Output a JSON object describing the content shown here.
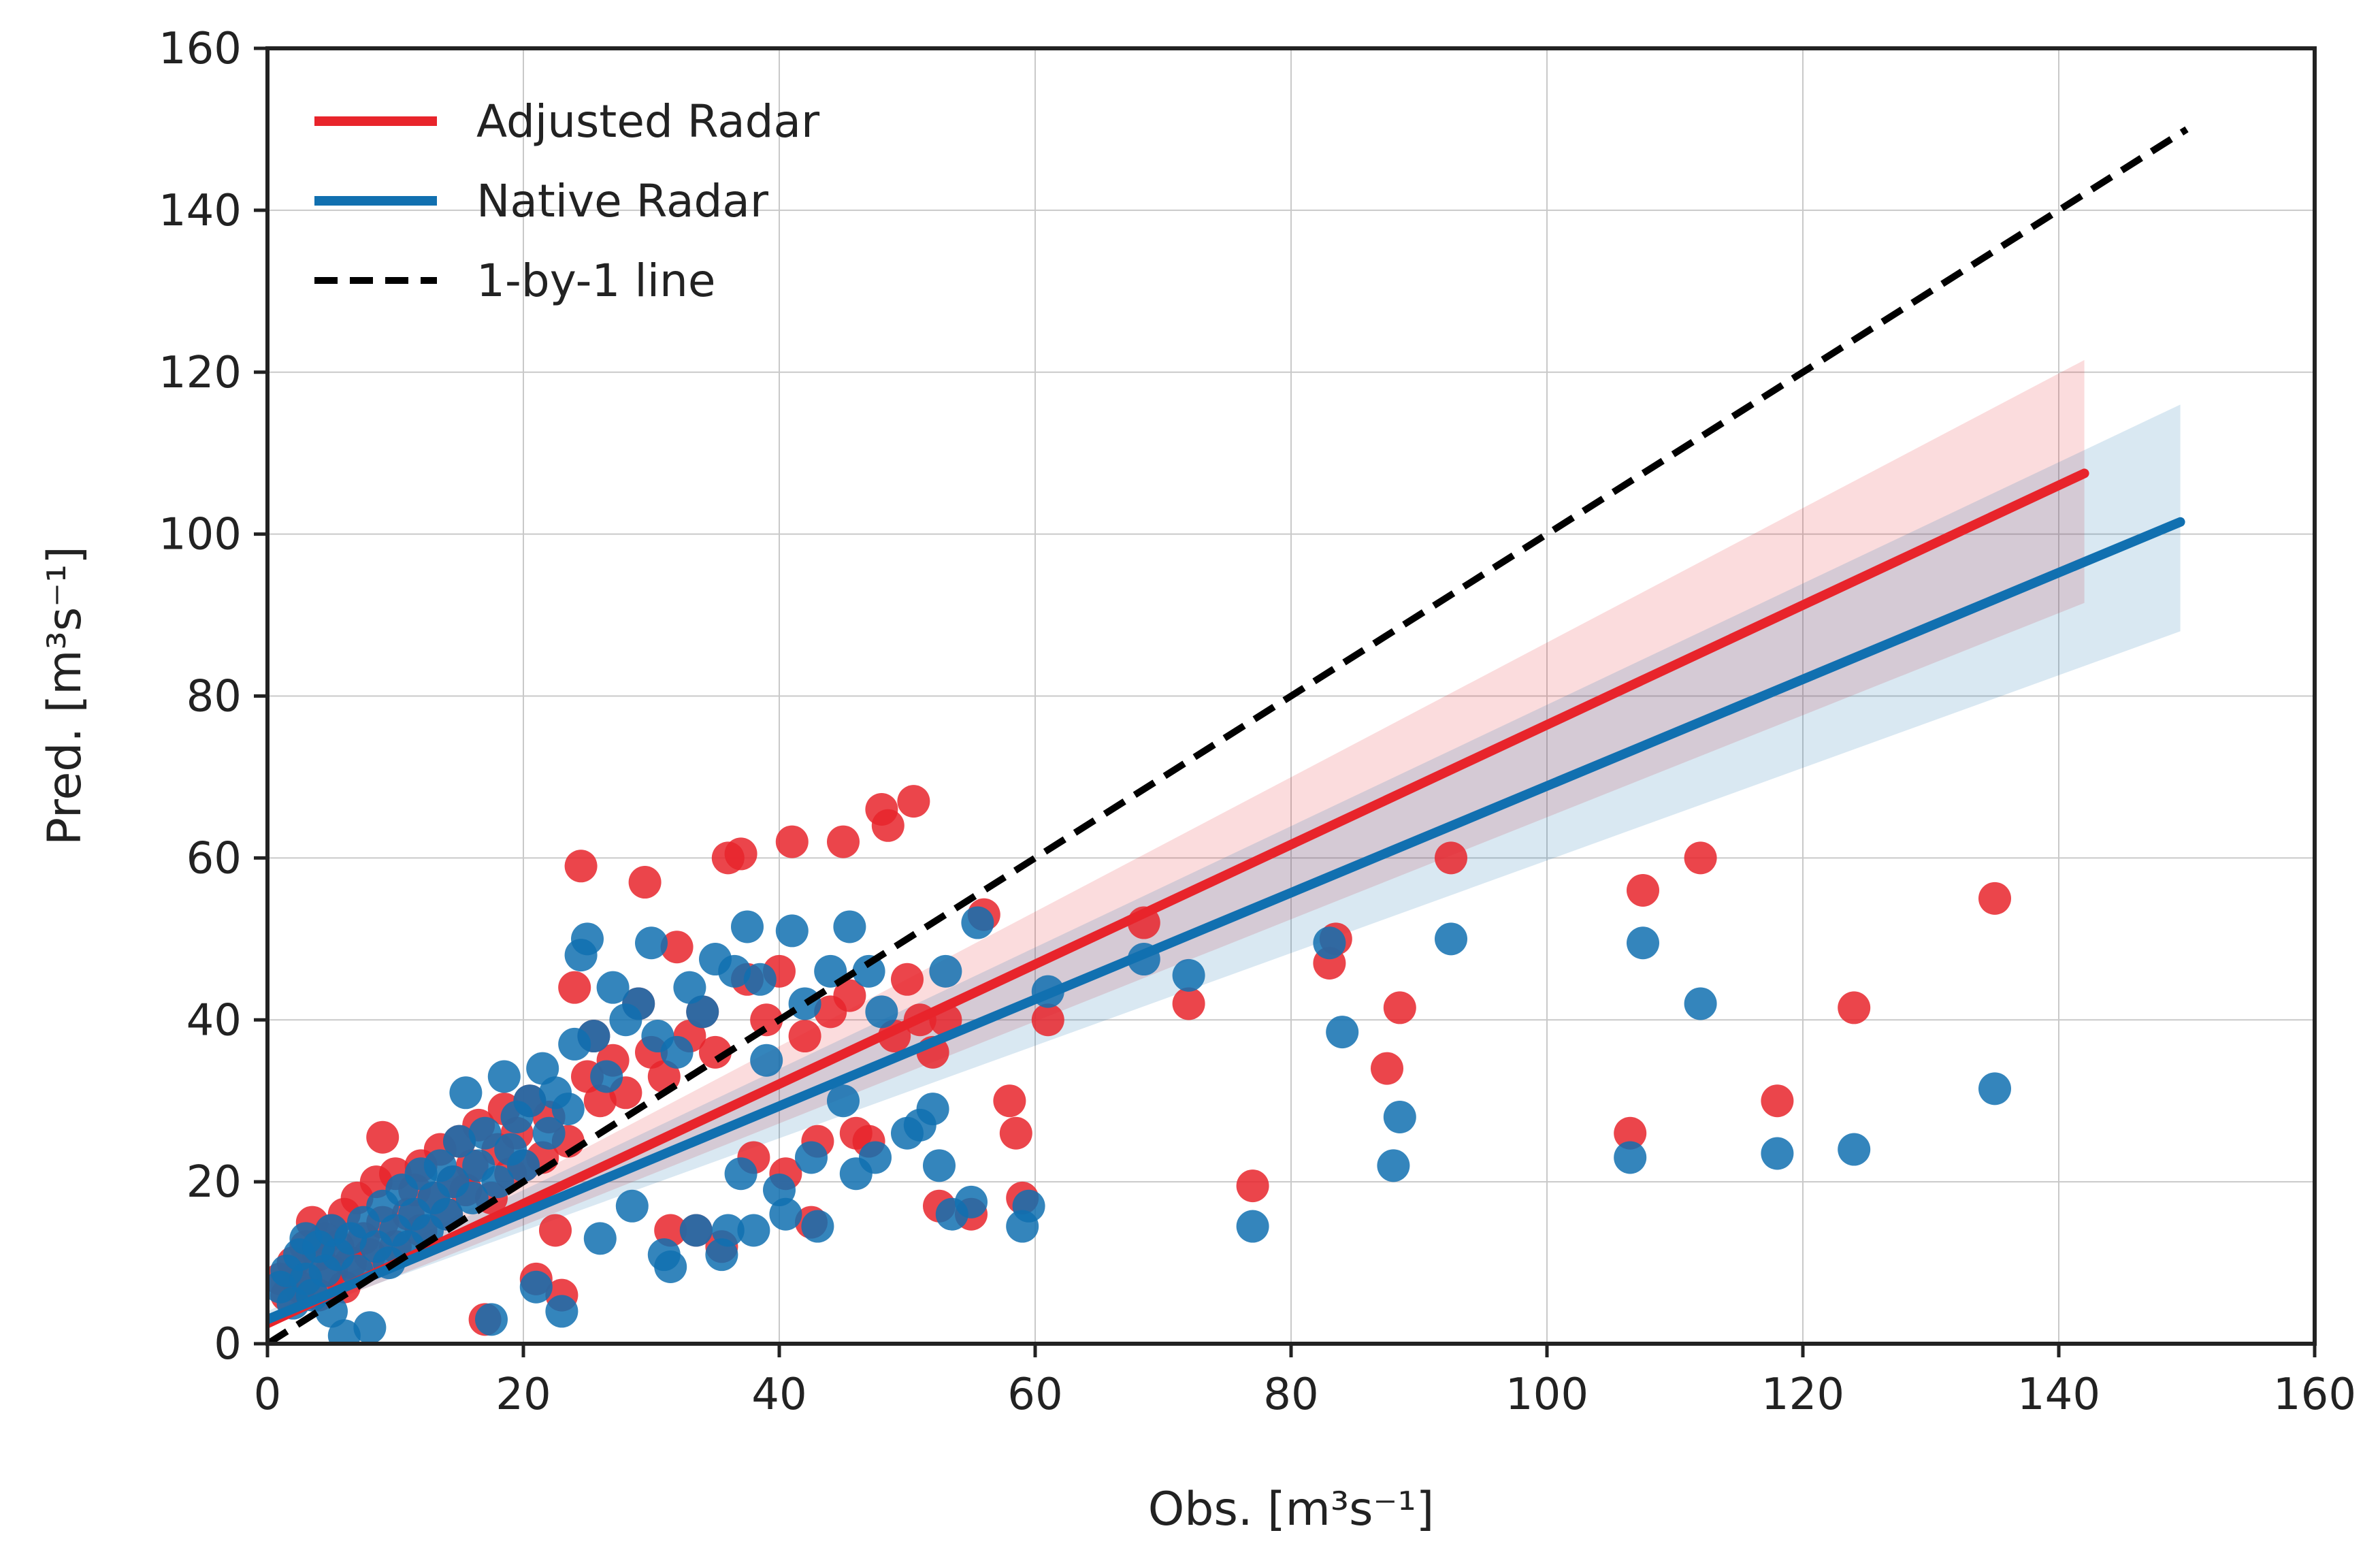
{
  "chart_data": {
    "type": "scatter",
    "title": "",
    "xlabel": "Obs. [m³s⁻¹]",
    "ylabel": "Pred. [m³s⁻¹]",
    "xlim": [
      0,
      160
    ],
    "ylim": [
      0,
      160
    ],
    "xticks": [
      0,
      20,
      40,
      60,
      80,
      100,
      120,
      140,
      160
    ],
    "yticks": [
      0,
      20,
      40,
      60,
      80,
      100,
      120,
      140,
      160
    ],
    "xtick_labels": [
      "0",
      "20",
      "40",
      "60",
      "80",
      "100",
      "120",
      "140",
      "160"
    ],
    "ytick_labels": [
      "0",
      "20",
      "40",
      "60",
      "80",
      "100",
      "120",
      "140",
      "160"
    ],
    "grid": true,
    "legend_position": "top-left",
    "legend": [
      {
        "label": "Adjusted Radar",
        "style": "solid",
        "color": "#e8242b"
      },
      {
        "label": "Native Radar",
        "style": "solid",
        "color": "#1170b0"
      },
      {
        "label": "1-by-1 line",
        "style": "dashed",
        "color": "#000000"
      }
    ],
    "one_to_one_line": {
      "x": [
        0,
        150
      ],
      "y": [
        0,
        150
      ]
    },
    "series": [
      {
        "name": "Adjusted Radar",
        "color": "#e8242b",
        "points": [
          [
            1,
            8
          ],
          [
            1.5,
            6
          ],
          [
            2,
            10
          ],
          [
            2.5,
            7
          ],
          [
            3,
            12
          ],
          [
            3,
            8
          ],
          [
            3.5,
            15
          ],
          [
            4,
            11
          ],
          [
            4,
            6
          ],
          [
            4.5,
            13
          ],
          [
            5,
            9
          ],
          [
            5,
            14
          ],
          [
            5.5,
            12
          ],
          [
            6,
            7
          ],
          [
            6,
            16
          ],
          [
            6.5,
            10
          ],
          [
            7,
            18
          ],
          [
            7.5,
            13
          ],
          [
            8,
            11
          ],
          [
            8.5,
            20
          ],
          [
            9,
            25.5
          ],
          [
            9,
            15
          ],
          [
            10,
            12
          ],
          [
            10,
            21
          ],
          [
            11,
            16
          ],
          [
            11.5,
            19
          ],
          [
            12,
            14
          ],
          [
            12,
            22
          ],
          [
            13,
            18
          ],
          [
            13.5,
            24
          ],
          [
            14,
            16
          ],
          [
            14.5,
            20
          ],
          [
            15,
            25
          ],
          [
            15.5,
            19
          ],
          [
            16,
            22
          ],
          [
            16.5,
            27
          ],
          [
            17,
            3
          ],
          [
            17.5,
            18
          ],
          [
            18,
            24
          ],
          [
            18.5,
            29
          ],
          [
            19,
            21
          ],
          [
            19.5,
            26
          ],
          [
            20,
            22
          ],
          [
            20.5,
            30
          ],
          [
            21,
            8
          ],
          [
            21.5,
            23
          ],
          [
            22,
            28
          ],
          [
            22.5,
            14
          ],
          [
            23,
            6
          ],
          [
            23.5,
            25
          ],
          [
            24,
            44
          ],
          [
            24.5,
            59
          ],
          [
            25,
            33
          ],
          [
            25.5,
            38
          ],
          [
            26,
            30
          ],
          [
            27,
            35
          ],
          [
            28,
            31
          ],
          [
            29,
            42
          ],
          [
            29.5,
            57
          ],
          [
            30,
            36
          ],
          [
            31,
            33
          ],
          [
            31.5,
            14
          ],
          [
            32,
            49
          ],
          [
            33,
            38
          ],
          [
            33.5,
            14
          ],
          [
            34,
            41
          ],
          [
            35,
            36
          ],
          [
            35.5,
            12
          ],
          [
            36,
            60
          ],
          [
            37,
            60.5
          ],
          [
            37.5,
            45
          ],
          [
            38,
            23
          ],
          [
            39,
            40
          ],
          [
            40,
            46
          ],
          [
            40.5,
            21
          ],
          [
            41,
            62
          ],
          [
            42,
            38
          ],
          [
            42.5,
            15
          ],
          [
            43,
            25
          ],
          [
            44,
            41
          ],
          [
            45,
            62
          ],
          [
            45.5,
            43
          ],
          [
            46,
            26
          ],
          [
            47,
            25
          ],
          [
            48,
            66
          ],
          [
            48.5,
            64
          ],
          [
            49,
            38
          ],
          [
            50,
            45
          ],
          [
            50.5,
            67
          ],
          [
            51,
            40
          ],
          [
            52,
            36
          ],
          [
            52.5,
            17
          ],
          [
            53,
            40
          ],
          [
            55,
            16
          ],
          [
            56,
            53
          ],
          [
            58,
            30
          ],
          [
            58.5,
            26
          ],
          [
            59,
            18
          ],
          [
            61,
            40
          ],
          [
            68.5,
            52
          ],
          [
            72,
            42
          ],
          [
            77,
            19.5
          ],
          [
            83,
            47
          ],
          [
            83.5,
            50
          ],
          [
            87.5,
            34
          ],
          [
            88.5,
            41.5
          ],
          [
            92.5,
            60
          ],
          [
            106.5,
            26
          ],
          [
            107.5,
            56
          ],
          [
            112,
            60
          ],
          [
            118,
            30
          ],
          [
            124,
            41.5
          ],
          [
            135,
            55
          ]
        ]
      },
      {
        "name": "Native Radar",
        "color": "#1170b0",
        "points": [
          [
            1,
            7
          ],
          [
            1.5,
            9
          ],
          [
            2,
            5
          ],
          [
            2.5,
            11
          ],
          [
            3,
            8
          ],
          [
            3,
            13
          ],
          [
            3.5,
            6
          ],
          [
            4,
            12
          ],
          [
            4.5,
            9
          ],
          [
            5,
            14
          ],
          [
            5,
            4
          ],
          [
            5.5,
            11
          ],
          [
            6,
            1
          ],
          [
            6.5,
            13
          ],
          [
            7,
            9
          ],
          [
            7.5,
            15
          ],
          [
            8,
            2
          ],
          [
            8.5,
            12
          ],
          [
            9,
            17
          ],
          [
            9.5,
            10
          ],
          [
            10,
            14
          ],
          [
            10.5,
            19
          ],
          [
            11,
            12
          ],
          [
            11.5,
            16
          ],
          [
            12,
            21
          ],
          [
            12.5,
            14
          ],
          [
            13,
            18
          ],
          [
            13.5,
            22
          ],
          [
            14,
            16
          ],
          [
            14.5,
            20
          ],
          [
            15,
            25
          ],
          [
            15.5,
            31
          ],
          [
            16,
            18
          ],
          [
            16.5,
            22
          ],
          [
            17,
            26
          ],
          [
            17.5,
            3
          ],
          [
            18,
            20
          ],
          [
            18.5,
            33
          ],
          [
            19,
            24
          ],
          [
            19.5,
            28
          ],
          [
            20,
            22
          ],
          [
            20.5,
            30
          ],
          [
            21,
            7
          ],
          [
            21.5,
            34
          ],
          [
            22,
            26
          ],
          [
            22.5,
            31
          ],
          [
            23,
            4
          ],
          [
            23.5,
            29
          ],
          [
            24,
            37
          ],
          [
            24.5,
            48
          ],
          [
            25,
            50
          ],
          [
            25.5,
            38
          ],
          [
            26,
            13
          ],
          [
            26.5,
            33
          ],
          [
            27,
            44
          ],
          [
            28,
            40
          ],
          [
            28.5,
            17
          ],
          [
            29,
            42
          ],
          [
            30,
            49.5
          ],
          [
            30.5,
            38
          ],
          [
            31,
            11
          ],
          [
            31.5,
            9.5
          ],
          [
            32,
            36
          ],
          [
            33,
            44
          ],
          [
            33.5,
            14
          ],
          [
            34,
            41
          ],
          [
            35,
            47.5
          ],
          [
            35.5,
            11
          ],
          [
            36,
            14
          ],
          [
            36.5,
            46
          ],
          [
            37,
            21
          ],
          [
            37.5,
            51.5
          ],
          [
            38,
            14
          ],
          [
            38.5,
            45
          ],
          [
            39,
            35
          ],
          [
            40,
            19
          ],
          [
            40.5,
            16
          ],
          [
            41,
            51
          ],
          [
            42,
            42
          ],
          [
            42.5,
            23
          ],
          [
            43,
            14.5
          ],
          [
            44,
            46
          ],
          [
            45,
            30
          ],
          [
            45.5,
            51.5
          ],
          [
            46,
            21
          ],
          [
            47,
            46
          ],
          [
            47.5,
            23
          ],
          [
            48,
            41
          ],
          [
            50,
            26
          ],
          [
            51,
            27
          ],
          [
            52,
            29
          ],
          [
            52.5,
            22
          ],
          [
            53,
            46
          ],
          [
            53.5,
            16
          ],
          [
            55,
            17.5
          ],
          [
            55.5,
            52
          ],
          [
            59,
            14.5
          ],
          [
            59.5,
            17
          ],
          [
            61,
            43.5
          ],
          [
            68.5,
            47.5
          ],
          [
            72,
            45.5
          ],
          [
            77,
            14.5
          ],
          [
            83,
            49.5
          ],
          [
            84,
            38.5
          ],
          [
            88,
            22
          ],
          [
            88.5,
            28
          ],
          [
            92.5,
            50
          ],
          [
            106.5,
            23
          ],
          [
            107.5,
            49.5
          ],
          [
            112,
            42
          ],
          [
            118,
            23.5
          ],
          [
            124,
            24
          ],
          [
            135,
            31.5
          ]
        ]
      }
    ],
    "regression_lines": [
      {
        "name": "Adjusted Radar",
        "color": "#e8242b",
        "x": [
          0,
          142
        ],
        "y": [
          2.5,
          107.5
        ],
        "ci_lower": [
          2.0,
          91.5
        ],
        "ci_upper": [
          3.5,
          121.5
        ]
      },
      {
        "name": "Native Radar",
        "color": "#1170b0",
        "x": [
          0,
          149.5
        ],
        "y": [
          3.0,
          101.5
        ],
        "ci_lower": [
          2.5,
          88.0
        ],
        "ci_upper": [
          4.0,
          116.0
        ]
      }
    ]
  }
}
